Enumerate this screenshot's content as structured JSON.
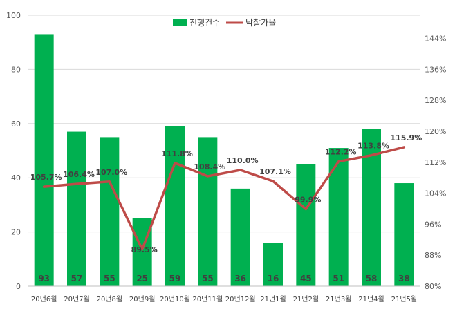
{
  "chart_data": {
    "type": "bar",
    "title": "",
    "categories": [
      "20년6월",
      "20년7월",
      "20년8월",
      "20년9월",
      "20년10월",
      "20년11월",
      "20년12월",
      "21년1월",
      "21년2월",
      "21년3월",
      "21년4월",
      "21년5월"
    ],
    "series": [
      {
        "name": "진행건수",
        "type": "bar",
        "axis": "left",
        "color": "#00b050",
        "values": [
          93,
          57,
          55,
          25,
          59,
          55,
          36,
          16,
          45,
          51,
          58,
          38
        ],
        "labels": [
          "93",
          "57",
          "55",
          "25",
          "59",
          "55",
          "36",
          "16",
          "45",
          "51",
          "58",
          "38"
        ]
      },
      {
        "name": "낙찰가율",
        "type": "line",
        "axis": "right",
        "color": "#be4b48",
        "values": [
          105.7,
          106.4,
          107.0,
          89.5,
          111.8,
          108.4,
          110.0,
          107.1,
          99.9,
          112.2,
          113.8,
          115.9
        ],
        "labels": [
          "105.7%",
          "106.4%",
          "107.0%",
          "89.5%",
          "111.8%",
          "108.4%",
          "110.0%",
          "107.1%",
          "99.9%",
          "112.2%",
          "113.8%",
          "115.9%"
        ]
      }
    ],
    "y_left": {
      "range": [
        0,
        100
      ],
      "ticks": [
        "0",
        "20",
        "40",
        "60",
        "80",
        "100"
      ]
    },
    "y_right": {
      "range": [
        80,
        150
      ],
      "ticks": [
        "80%",
        "88%",
        "96%",
        "104%",
        "112%",
        "120%",
        "128%",
        "136%",
        "144%"
      ]
    },
    "grid": true,
    "legend": "top-center"
  }
}
